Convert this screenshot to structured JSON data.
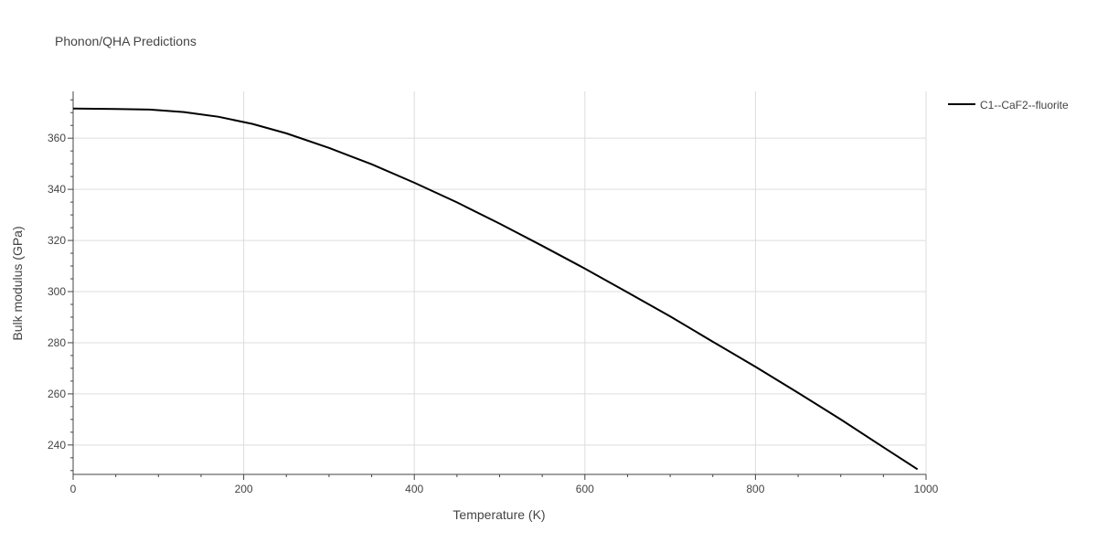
{
  "chart_data": {
    "type": "line",
    "title": "Phonon/QHA Predictions",
    "xlabel": "Temperature (K)",
    "ylabel": "Bulk modulus (GPa)",
    "xlim": [
      0,
      1000
    ],
    "ylim": [
      228.5,
      378.3
    ],
    "xticks": [
      0,
      200,
      400,
      600,
      800,
      1000
    ],
    "yticks": [
      240,
      260,
      280,
      300,
      320,
      340,
      360
    ],
    "grid": true,
    "legend_position": "top-right",
    "series": [
      {
        "name": "C1--CaF2--fluorite",
        "color": "#000000",
        "x": [
          0,
          50,
          90,
          130,
          170,
          210,
          250,
          300,
          350,
          400,
          450,
          500,
          550,
          600,
          650,
          700,
          750,
          800,
          850,
          900,
          950,
          990
        ],
        "y": [
          371.6,
          371.4,
          371.2,
          370.2,
          368.4,
          365.6,
          361.9,
          356.2,
          349.8,
          342.6,
          334.9,
          326.6,
          317.9,
          309.0,
          299.7,
          290.3,
          280.4,
          270.6,
          260.4,
          250.0,
          239.1,
          230.5
        ]
      }
    ]
  }
}
